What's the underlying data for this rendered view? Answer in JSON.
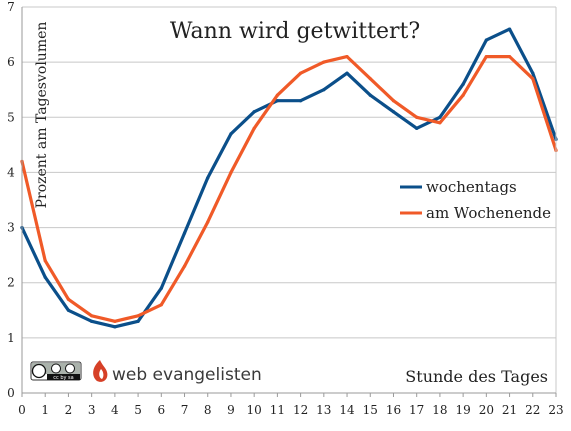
{
  "chart_data": {
    "type": "line",
    "title": "Wann wird getwittert?",
    "xlabel": "Stunde des Tages",
    "ylabel": "Prozent am Tagesvolumen",
    "x": [
      0,
      1,
      2,
      3,
      4,
      5,
      6,
      7,
      8,
      9,
      10,
      11,
      12,
      13,
      14,
      15,
      16,
      17,
      18,
      19,
      20,
      21,
      22,
      23
    ],
    "xlim": [
      0,
      23
    ],
    "ylim": [
      0,
      7
    ],
    "yticks": [
      0,
      1,
      2,
      3,
      4,
      5,
      6,
      7
    ],
    "grid": "horizontal",
    "legend_position": "right",
    "series": [
      {
        "name": "wochentags",
        "color": "#0b4f8a",
        "values": [
          3.0,
          2.1,
          1.5,
          1.3,
          1.2,
          1.3,
          1.9,
          2.9,
          3.9,
          4.7,
          5.1,
          5.3,
          5.3,
          5.5,
          5.8,
          5.4,
          5.1,
          4.8,
          5.0,
          5.6,
          6.4,
          6.6,
          5.8,
          4.6
        ]
      },
      {
        "name": "am Wochenende",
        "color": "#f05a28",
        "values": [
          4.2,
          2.4,
          1.7,
          1.4,
          1.3,
          1.4,
          1.6,
          2.3,
          3.1,
          4.0,
          4.8,
          5.4,
          5.8,
          6.0,
          6.1,
          5.7,
          5.3,
          5.0,
          4.9,
          5.4,
          6.1,
          6.1,
          5.7,
          4.4
        ]
      }
    ]
  },
  "branding": {
    "license_badge": "cc by sa",
    "logo_text": "web evangelisten"
  }
}
